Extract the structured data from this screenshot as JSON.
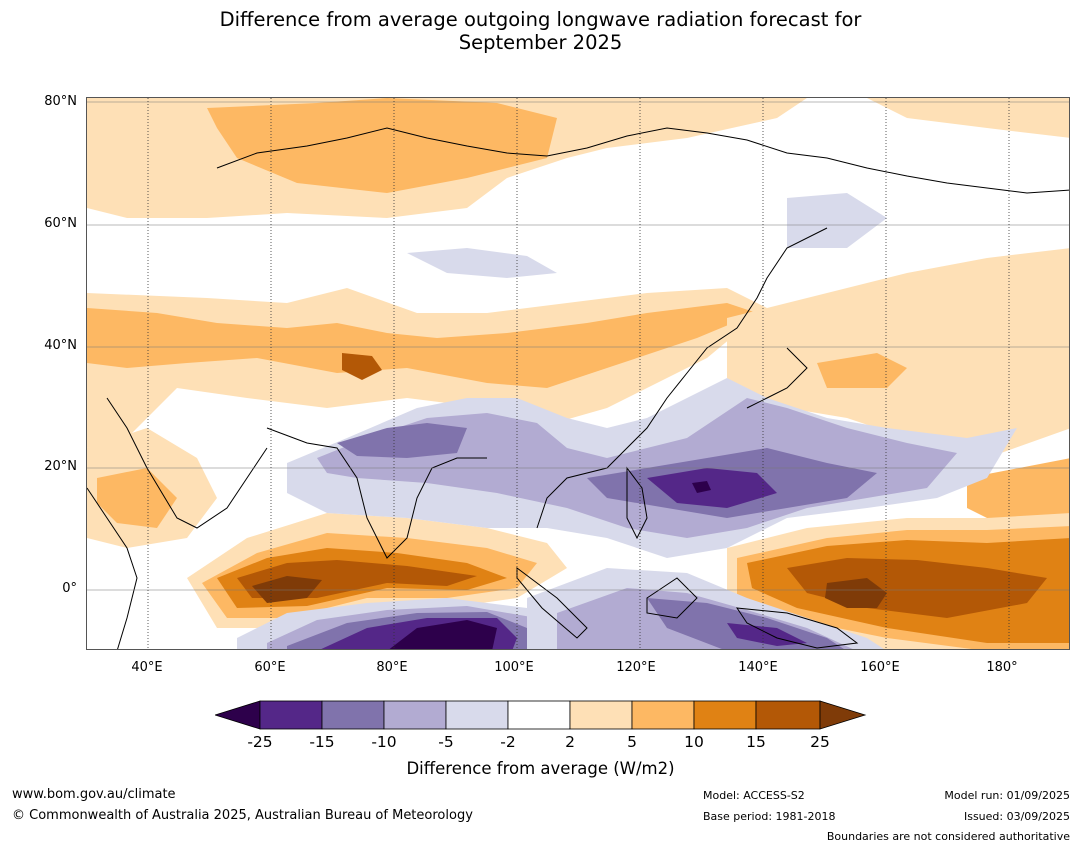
{
  "title_line1": "Difference from average outgoing longwave radiation forecast for",
  "title_line2": "September 2025",
  "lat_labels": [
    "80°N",
    "60°N",
    "40°N",
    "20°N",
    "0°"
  ],
  "lon_labels": [
    "40°E",
    "60°E",
    "80°E",
    "100°E",
    "120°E",
    "140°E",
    "160°E",
    "180°"
  ],
  "map_extent": {
    "lon": [
      30,
      190
    ],
    "lat": [
      -10,
      80
    ]
  },
  "colorbar": {
    "title": "Difference from average (W/m2)",
    "ticks": [
      "-25",
      "-15",
      "-10",
      "-5",
      "-2",
      "2",
      "5",
      "10",
      "15",
      "25"
    ],
    "colors": [
      "#2d004b",
      "#542788",
      "#8073ac",
      "#b2abd2",
      "#d8daeb",
      "#ffffff",
      "#fee0b6",
      "#fdb863",
      "#e08214",
      "#b35806",
      "#7f3b08"
    ]
  },
  "footer": {
    "website": "www.bom.gov.au/climate",
    "copyright": "© Commonwealth of Australia 2025, Australian Bureau of Meteorology",
    "model": "Model: ACCESS-S2",
    "base_period": "Base period: 1981-2018",
    "model_run": "Model run: 01/09/2025",
    "issued": "Issued: 03/09/2025",
    "boundaries_note": "Boundaries are not considered authoritative"
  }
}
